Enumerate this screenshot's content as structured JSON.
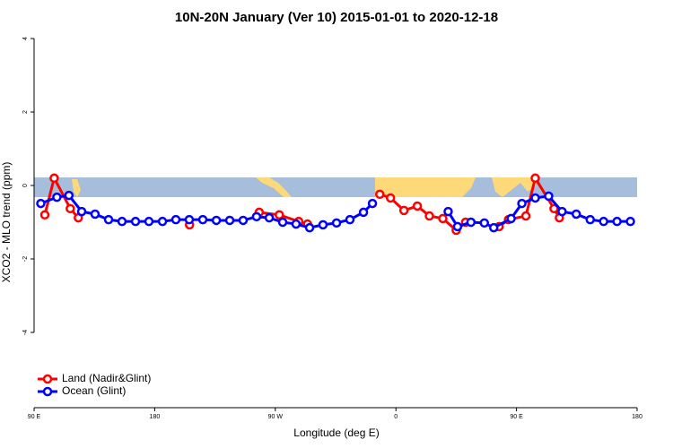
{
  "chart_data": {
    "type": "line",
    "title": "10N-20N January (Ver 10)   2015-01-01 to 2020-12-18",
    "x_label": "Longitude (deg E)",
    "y_label": "XCO2 - MLO trend (ppm)",
    "xlim": [
      90,
      540
    ],
    "xticks": [
      {
        "value": 90,
        "label": "90 E"
      },
      180,
      {
        "value": 270,
        "label": "90 W"
      },
      {
        "value": 360,
        "label": "0"
      },
      {
        "value": 450,
        "label": "90 E"
      },
      {
        "value": 540,
        "label": "180"
      }
    ],
    "ylim": [
      -6.05,
      4.15
    ],
    "yticks": [
      -4,
      -2,
      0,
      2,
      4
    ],
    "legend": "bottom-left",
    "series": [
      {
        "name": "Land (Nadir&Glint)",
        "color": "#ff0000",
        "x": [
          98,
          105,
          117,
          123,
          null,
          206,
          null,
          258,
          273,
          287.5,
          294,
          null,
          348,
          356,
          366,
          376,
          385,
          395,
          405,
          412,
          null,
          437,
          444,
          457,
          464,
          478,
          482
        ],
        "values": [
          -0.8,
          0.2,
          -0.63,
          -0.88,
          null,
          -1.07,
          null,
          -0.73,
          -0.8,
          -0.98,
          -1.05,
          null,
          -0.24,
          -0.34,
          -0.68,
          -0.56,
          -0.83,
          -0.9,
          -1.22,
          -1.0,
          null,
          -1.12,
          -0.93,
          -0.83,
          0.2,
          -0.63,
          -0.88
        ]
      },
      {
        "name": "Ocean (Glint)",
        "color": "#0000ff",
        "x": [
          95,
          107,
          116,
          125.5,
          135.5,
          145.6,
          155.6,
          165.7,
          175.7,
          185.8,
          195.8,
          205.8,
          215.9,
          226,
          236,
          246,
          256,
          265.5,
          275.5,
          285.5,
          295.6,
          305.6,
          315.7,
          325.7,
          335.8,
          342.5,
          null,
          399,
          406,
          416,
          426,
          433,
          446,
          454,
          464,
          474,
          484,
          494.6,
          505,
          515,
          525,
          535
        ],
        "values": [
          -0.49,
          -0.32,
          -0.27,
          -0.71,
          -0.78,
          -0.93,
          -0.98,
          -0.98,
          -0.98,
          -0.98,
          -0.93,
          -0.93,
          -0.93,
          -0.95,
          -0.95,
          -0.95,
          -0.85,
          -0.88,
          -1.0,
          -1.05,
          -1.15,
          -1.07,
          -1.02,
          -0.93,
          -0.73,
          -0.49,
          null,
          -0.71,
          -1.12,
          -1.0,
          -1.02,
          -1.15,
          -0.9,
          -0.49,
          -0.34,
          -0.29,
          -0.71,
          -0.78,
          -0.93,
          -0.98,
          -0.98,
          -0.98
        ]
      }
    ]
  }
}
